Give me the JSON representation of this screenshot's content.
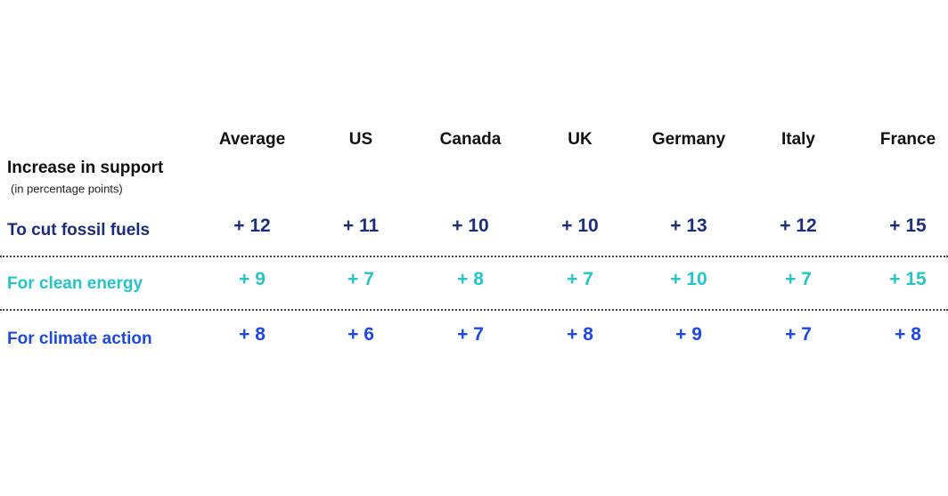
{
  "header": {
    "title": "Increase in support",
    "subtitle": "(in percentage points)"
  },
  "table": {
    "columns": [
      "Average",
      "US",
      "Canada",
      "UK",
      "Germany",
      "Italy",
      "France"
    ],
    "rows": [
      {
        "label": "To cut fossil fuels",
        "values": [
          "+ 12",
          "+ 11",
          "+ 10",
          "+ 10",
          "+ 13",
          "+ 12",
          "+ 15"
        ]
      },
      {
        "label": "For clean energy",
        "values": [
          "+ 9",
          "+ 7",
          "+ 8",
          "+ 7",
          "+ 10",
          "+ 7",
          "+ 15"
        ]
      },
      {
        "label": "For climate action",
        "values": [
          "+ 8",
          "+ 6",
          "+ 7",
          "+ 8",
          "+ 9",
          "+ 7",
          "+ 8"
        ]
      }
    ]
  }
}
